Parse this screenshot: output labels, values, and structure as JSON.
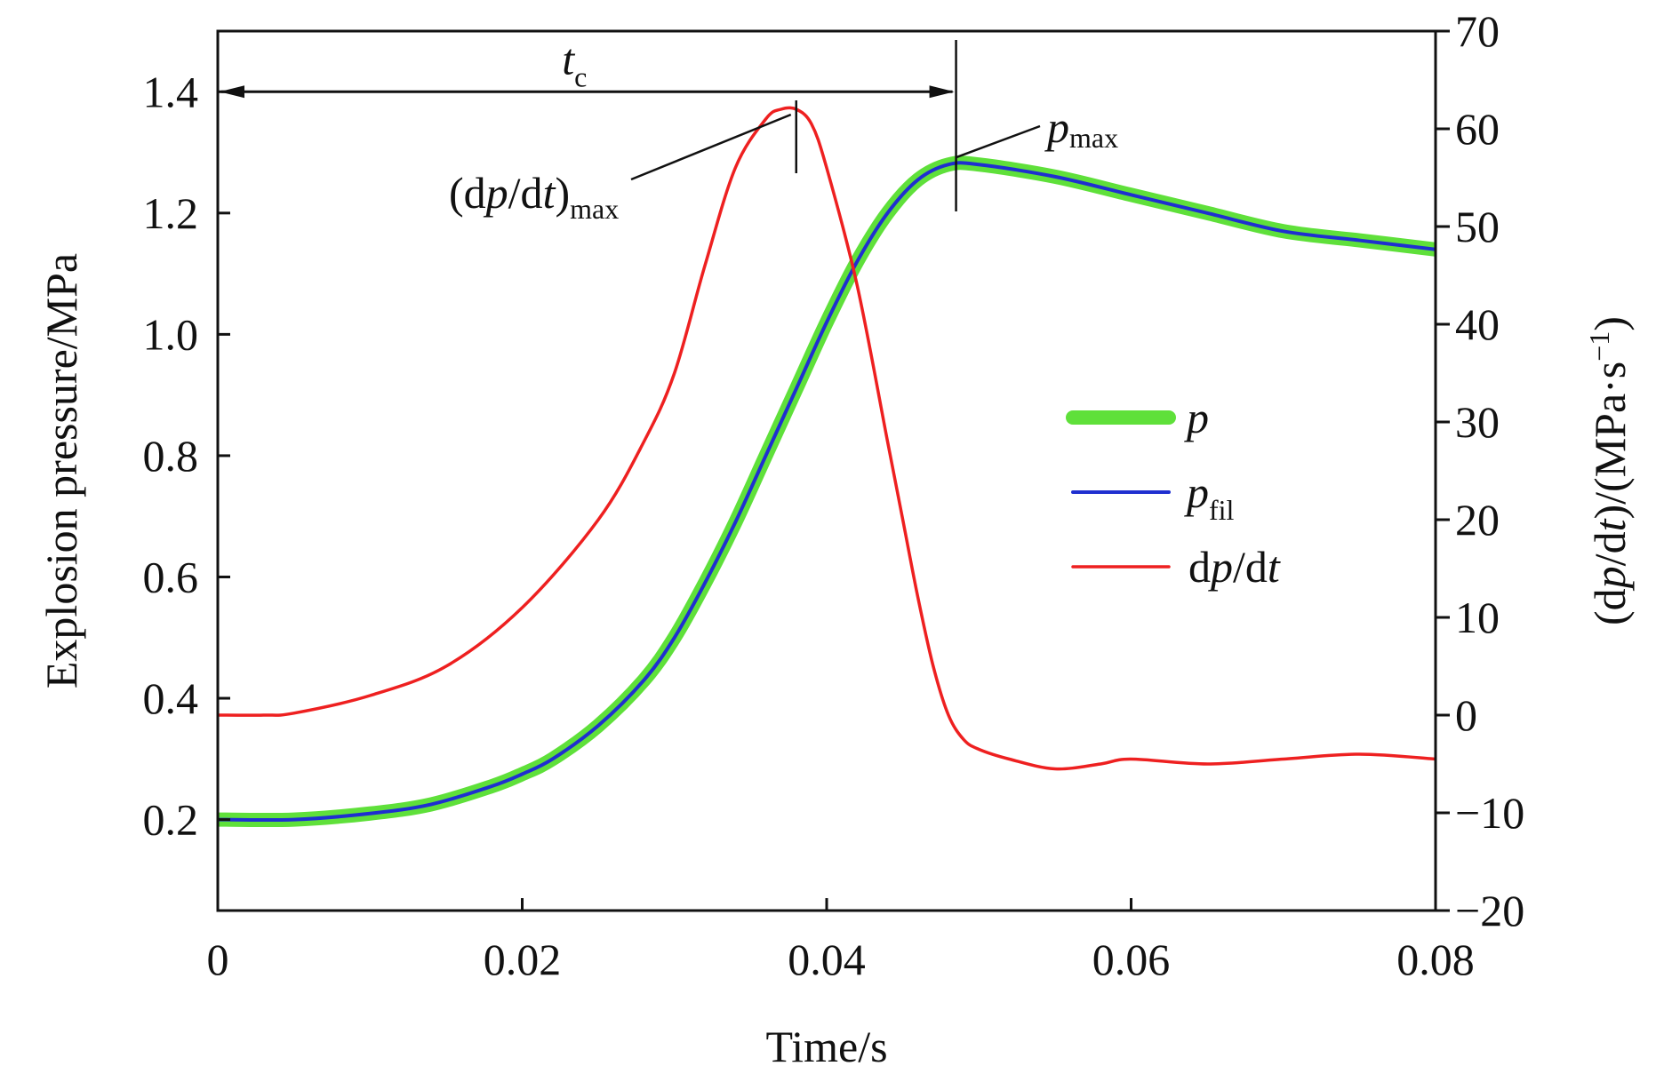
{
  "chart_data": {
    "type": "line",
    "xlabel": "Time/s",
    "ylabel_left": "Explosion pressure/MPa",
    "ylabel_right": "(dp/dt)/(MPa·s⁻¹)",
    "xlim": [
      0,
      0.08
    ],
    "ylim_left": [
      0.05,
      1.5
    ],
    "ylim_right": [
      -20,
      70
    ],
    "x_ticks": [
      {
        "value": 0,
        "label": "0"
      },
      {
        "value": 0.02,
        "label": "0.02"
      },
      {
        "value": 0.04,
        "label": "0.04"
      },
      {
        "value": 0.06,
        "label": "0.06"
      },
      {
        "value": 0.08,
        "label": "0.08"
      }
    ],
    "y_left_ticks": [
      {
        "value": 0.2,
        "label": "0.2"
      },
      {
        "value": 0.4,
        "label": "0.4"
      },
      {
        "value": 0.6,
        "label": "0.6"
      },
      {
        "value": 0.8,
        "label": "0.8"
      },
      {
        "value": 1.0,
        "label": "1.0"
      },
      {
        "value": 1.2,
        "label": "1.2"
      },
      {
        "value": 1.4,
        "label": "1.4"
      }
    ],
    "y_right_ticks": [
      {
        "value": -20,
        "label": "−20"
      },
      {
        "value": -10,
        "label": "−10"
      },
      {
        "value": 0,
        "label": "0"
      },
      {
        "value": 10,
        "label": "10"
      },
      {
        "value": 20,
        "label": "20"
      },
      {
        "value": 30,
        "label": "30"
      },
      {
        "value": 40,
        "label": "40"
      },
      {
        "value": 50,
        "label": "50"
      },
      {
        "value": 60,
        "label": "60"
      },
      {
        "value": 70,
        "label": "70"
      }
    ],
    "series": [
      {
        "name": "p",
        "axis": "left",
        "color": "#5fe03a",
        "x": [
          0,
          0.005,
          0.01,
          0.014,
          0.018,
          0.02,
          0.022,
          0.025,
          0.028,
          0.03,
          0.032,
          0.034,
          0.036,
          0.038,
          0.04,
          0.042,
          0.044,
          0.046,
          0.048,
          0.05,
          0.055,
          0.06,
          0.065,
          0.07,
          0.075,
          0.08
        ],
        "y": [
          0.2,
          0.2,
          0.21,
          0.225,
          0.255,
          0.275,
          0.3,
          0.355,
          0.43,
          0.5,
          0.59,
          0.69,
          0.8,
          0.91,
          1.02,
          1.12,
          1.2,
          1.255,
          1.28,
          1.28,
          1.26,
          1.23,
          1.2,
          1.17,
          1.155,
          1.14
        ]
      },
      {
        "name": "p_fil",
        "axis": "left",
        "color": "#1f2fd0",
        "x": [
          0,
          0.005,
          0.01,
          0.014,
          0.018,
          0.02,
          0.022,
          0.025,
          0.028,
          0.03,
          0.032,
          0.034,
          0.036,
          0.038,
          0.04,
          0.042,
          0.044,
          0.046,
          0.048,
          0.05,
          0.055,
          0.06,
          0.065,
          0.07,
          0.075,
          0.08
        ],
        "y": [
          0.2,
          0.2,
          0.21,
          0.225,
          0.255,
          0.275,
          0.3,
          0.355,
          0.43,
          0.5,
          0.59,
          0.69,
          0.8,
          0.91,
          1.02,
          1.12,
          1.2,
          1.255,
          1.28,
          1.28,
          1.26,
          1.23,
          1.2,
          1.17,
          1.155,
          1.14
        ]
      },
      {
        "name": "dp/dt",
        "axis": "right",
        "color": "#ee2020",
        "x": [
          0,
          0.003,
          0.005,
          0.01,
          0.015,
          0.02,
          0.025,
          0.028,
          0.03,
          0.032,
          0.034,
          0.036,
          0.037,
          0.038,
          0.039,
          0.04,
          0.042,
          0.044,
          0.045,
          0.046,
          0.047,
          0.048,
          0.049,
          0.05,
          0.052,
          0.055,
          0.058,
          0.06,
          0.065,
          0.07,
          0.075,
          0.08
        ],
        "y": [
          0,
          0,
          0.2,
          2,
          5,
          11,
          20,
          28,
          35,
          46,
          56,
          61,
          62,
          62,
          60.5,
          56,
          44,
          28,
          20,
          12,
          5,
          0,
          -2.5,
          -3.5,
          -4.5,
          -5.5,
          -5,
          -4.5,
          -5,
          -4.5,
          -4,
          -4.5
        ]
      }
    ],
    "legend": {
      "placement": "center-right",
      "entries": [
        {
          "label_main": "p",
          "label_sub": "",
          "color": "#5fe03a"
        },
        {
          "label_main": "p",
          "label_sub": "fil",
          "color": "#1f2fd0"
        },
        {
          "label_main": "dp/dt",
          "label_sub": "",
          "color": "#ee2020"
        }
      ]
    },
    "annotations": {
      "tc": {
        "main": "t",
        "sub": "c",
        "x_start": 0,
        "x_end": 0.0485,
        "y": 1.4
      },
      "dpdt_max": {
        "text_open": "(d",
        "text_p": "p",
        "text_mid": "/d",
        "text_t": "t",
        "text_close": ")",
        "sub": "max",
        "x": 0.038,
        "y_right": 62
      },
      "p_max": {
        "main": "p",
        "sub": "max",
        "x": 0.0485,
        "y": 1.28
      }
    },
    "grid": false
  }
}
